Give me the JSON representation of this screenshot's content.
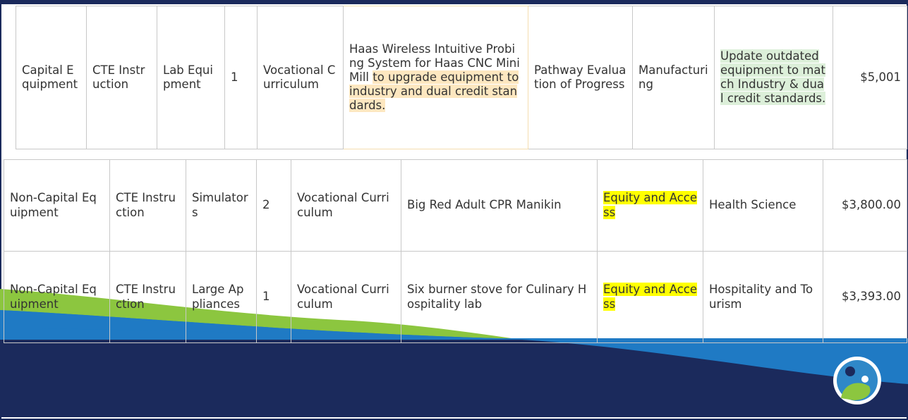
{
  "top_table": {
    "rows": [
      [
        [
          "Capital Equipment"
        ],
        [
          "CTE Instruction"
        ],
        [
          "Lab Equipment"
        ],
        [
          1
        ],
        [
          "Vocational Curriculum"
        ],
        [
          "Haas Wireless Intuitive Probing System for Haas CNC Mini Mill",
          "to upgrade equipment to industry and dual credit standards."
        ],
        [
          "Pathway Evaluation of Progress"
        ],
        [
          "Manufacturing"
        ],
        [
          "Update outdated equipment to match Industry & dual credit standards."
        ],
        [
          "$5,001"
        ]
      ]
    ]
  },
  "bottom_table": {
    "rows": [
      [
        [
          "Non-Capital Equipment"
        ],
        [
          "CTE Instruction"
        ],
        [
          "Simulators"
        ],
        [
          2
        ],
        [
          "Vocational Curriculum"
        ],
        [
          "Big Red Adult CPR Manikin"
        ],
        [
          "Equity and Access"
        ],
        [
          "Health Science"
        ],
        [
          "$3,800.00"
        ]
      ],
      [
        [
          "Non-Capital Equipment"
        ],
        [
          "CTE Instruction"
        ],
        [
          "Large Appliances"
        ],
        [
          1
        ],
        [
          "Vocational Curriculum"
        ],
        [
          "Six burner stove for Culinary Hospitality lab"
        ],
        [
          "Equity and Access"
        ],
        [
          "Hospitality and Tourism"
        ],
        [
          "$3,393.00"
        ]
      ]
    ]
  }
}
